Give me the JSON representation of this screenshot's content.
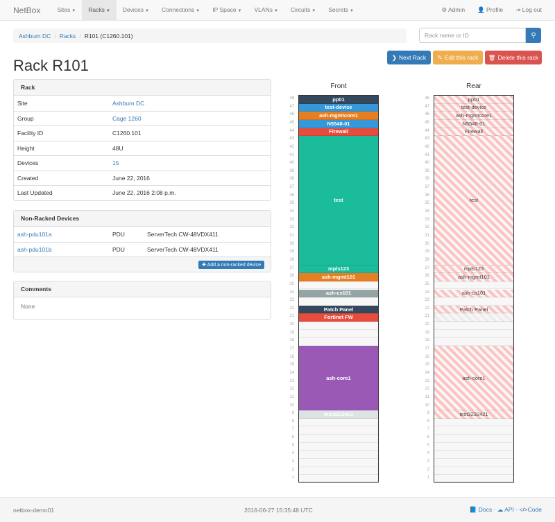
{
  "navbar": {
    "brand": "NetBox",
    "items": [
      "Sites",
      "Racks",
      "Devices",
      "Connections",
      "IP Space",
      "VLANs",
      "Circuits",
      "Secrets"
    ],
    "active": "Racks",
    "right": [
      {
        "icon": "gear-icon",
        "label": "Admin"
      },
      {
        "icon": "user-icon",
        "label": "Profile"
      },
      {
        "icon": "logout-icon",
        "label": "Log out"
      }
    ]
  },
  "breadcrumb": [
    "Ashburn DC",
    "Racks",
    "R101 (C1260.101)"
  ],
  "search": {
    "placeholder": "Rack name or ID",
    "icon": "search-icon"
  },
  "buttons": {
    "next": "Next Rack",
    "edit": "Edit this rack",
    "delete": "Delete this rack"
  },
  "colors": {
    "primary": "#337ab7",
    "warning": "#f0ad4e",
    "danger": "#d9534f"
  },
  "title": "Rack R101",
  "rack_panel": {
    "heading": "Rack",
    "rows": [
      {
        "label": "Site",
        "value": "Ashburn DC",
        "link": true
      },
      {
        "label": "Group",
        "value": "Cage 1260",
        "link": true
      },
      {
        "label": "Facility ID",
        "value": "C1260.101",
        "link": false
      },
      {
        "label": "Height",
        "value": "48U",
        "link": false
      },
      {
        "label": "Devices",
        "value": "15",
        "link": true
      },
      {
        "label": "Created",
        "value": "June 22, 2016",
        "link": false
      },
      {
        "label": "Last Updated",
        "value": "June 22, 2016 2:08 p.m.",
        "link": false
      }
    ]
  },
  "non_racked": {
    "heading": "Non-Racked Devices",
    "rows": [
      {
        "name": "ash-pdu101a",
        "role": "PDU",
        "type": "ServerTech CW-48VDX411"
      },
      {
        "name": "ash-pdu101b",
        "role": "PDU",
        "type": "ServerTech CW-48VDX411"
      }
    ],
    "add_label": "Add a non-racked device"
  },
  "comments": {
    "heading": "Comments",
    "body": "None"
  },
  "rack": {
    "units": 48,
    "front_label": "Front",
    "rear_label": "Rear",
    "front": [
      {
        "name": "pp01",
        "u": 48,
        "height": 1,
        "color": "#34495e"
      },
      {
        "name": "test-device",
        "u": 47,
        "height": 1,
        "color": "#3498db"
      },
      {
        "name": "ash-mgmtcore1",
        "u": 46,
        "height": 1,
        "color": "#e67e22"
      },
      {
        "name": "N5548-01",
        "u": 45,
        "height": 1,
        "color": "#3498db"
      },
      {
        "name": "Firewall",
        "u": 44,
        "height": 1,
        "color": "#e74c3c"
      },
      {
        "name": "test",
        "u": 28,
        "height": 16,
        "color": "#1abc9c"
      },
      {
        "name": "mpls123",
        "u": 27,
        "height": 1,
        "color": "#1abc9c"
      },
      {
        "name": "ash-mgmt101",
        "u": 26,
        "height": 1,
        "color": "#e67e22"
      },
      {
        "name": "ash-cs101",
        "u": 24,
        "height": 1,
        "color": "#95a5a6"
      },
      {
        "name": "Patch Panel",
        "u": 22,
        "height": 1,
        "color": "#34495e"
      },
      {
        "name": "Fortinet FW",
        "u": 21,
        "height": 1,
        "color": "#e74c3c"
      },
      {
        "name": "ash-core1",
        "u": 10,
        "height": 8,
        "color": "#9b59b6"
      },
      {
        "name": "test3232421",
        "u": 9,
        "height": 1,
        "color": "#dde2e5"
      }
    ],
    "rear": [
      {
        "name": "pp01",
        "u": 48,
        "height": 1
      },
      {
        "name": "test-device",
        "u": 47,
        "height": 1
      },
      {
        "name": "ash-mgmtcore1",
        "u": 46,
        "height": 1
      },
      {
        "name": "N5548-01",
        "u": 45,
        "height": 1
      },
      {
        "name": "Firewall",
        "u": 44,
        "height": 1
      },
      {
        "name": "test",
        "u": 28,
        "height": 16
      },
      {
        "name": "mpls123",
        "u": 27,
        "height": 1
      },
      {
        "name": "ash-mgmt101",
        "u": 26,
        "height": 1
      },
      {
        "name": "ash-cs101",
        "u": 24,
        "height": 1
      },
      {
        "name": "Patch Panel",
        "u": 22,
        "height": 1
      },
      {
        "name": "",
        "u": 21,
        "height": 1,
        "half": true
      },
      {
        "name": "ash-core1",
        "u": 10,
        "height": 8
      },
      {
        "name": "test3232421",
        "u": 9,
        "height": 1
      }
    ]
  },
  "footer": {
    "host": "netbox-demo01",
    "time": "2016-06-27 15:35:48 UTC",
    "links": [
      "Docs",
      "API",
      "Code"
    ]
  }
}
